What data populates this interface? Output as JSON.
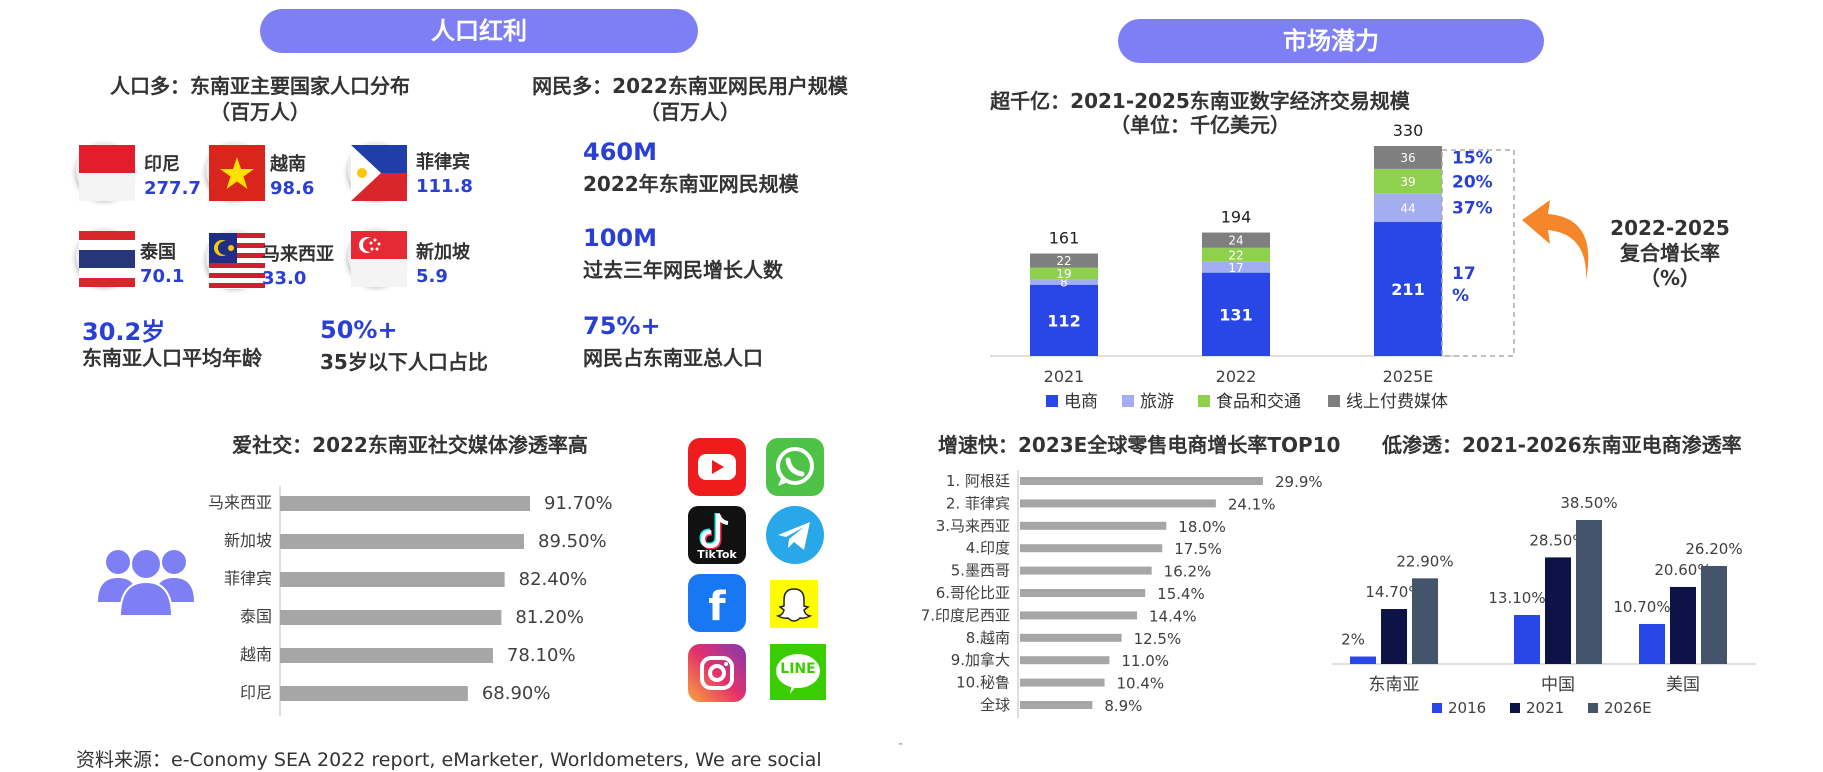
{
  "left": {
    "pill_title": "人口红利",
    "population_heading": "人口多：东南亚主要国家人口分布\n（百万人）",
    "countries": [
      {
        "name": "印尼",
        "value": "277.7",
        "flag": "indonesia-flag"
      },
      {
        "name": "越南",
        "value": "98.6",
        "flag": "vietnam-flag"
      },
      {
        "name": "菲律宾",
        "value": "111.8",
        "flag": "philippines-flag"
      },
      {
        "name": "泰国",
        "value": "70.1",
        "flag": "thailand-flag"
      },
      {
        "name": "马来西亚",
        "value": "33.0",
        "flag": "malaysia-flag"
      },
      {
        "name": "新加坡",
        "value": "5.9",
        "flag": "singapore-flag"
      }
    ],
    "stats": [
      {
        "num": "30.2岁",
        "desc": "东南亚人口平均年龄"
      },
      {
        "num": "50%+",
        "desc": "35岁以下人口占比"
      }
    ],
    "netizen_heading": "网民多：2022东南亚网民用户规模\n（百万人）",
    "netizen_stats": [
      {
        "num": "460M",
        "desc": "2022年东南亚网民规模"
      },
      {
        "num": "100M",
        "desc": "过去三年网民增长人数"
      },
      {
        "num": "75%+",
        "desc": "网民占东南亚总人口"
      }
    ],
    "social_heading": "爱社交：2022东南亚社交媒体渗透率高",
    "apps": [
      "youtube-icon",
      "whatsapp-icon",
      "tiktok-icon",
      "telegram-icon",
      "facebook-icon",
      "snapchat-icon",
      "instagram-icon",
      "line-icon"
    ],
    "tiktok_label": "TikTok",
    "line_label": "LINE"
  },
  "right": {
    "pill_title": "市场潜力",
    "cagr_label": "2022-2025\n复合增长率\n（%）"
  },
  "source_text": "资料来源：e-Conomy SEA 2022 report, eMarketer, Worldometers, We are social",
  "stray_mark": "-",
  "colors": {
    "pill": "#7f7ff5",
    "accent_blue": "#2a3fd6",
    "ecommerce": "#2946e6",
    "travel": "#a3aef2",
    "food": "#8fd14f",
    "media": "#7f7f7f",
    "gray_bar": "#a6a6a6",
    "navy": "#0d1247",
    "slate": "#44546a",
    "orange": "#f5872a"
  },
  "chart_data": [
    {
      "id": "social",
      "type": "bar",
      "orientation": "horizontal",
      "title": "爱社交：2022东南亚社交媒体渗透率高",
      "categories": [
        "马来西亚",
        "新加坡",
        "菲律宾",
        "泰国",
        "越南",
        "印尼"
      ],
      "values": [
        91.7,
        89.5,
        82.4,
        81.2,
        78.1,
        68.9
      ],
      "labels": [
        "91.70%",
        "89.50%",
        "82.40%",
        "81.20%",
        "78.10%",
        "68.90%"
      ],
      "xlim": [
        0,
        100
      ]
    },
    {
      "id": "digital",
      "type": "bar",
      "stacked": true,
      "title": "超千亿：2021-2025东南亚数字经济交易规模\n（单位：千亿美元）",
      "categories": [
        "2021",
        "2022",
        "2025E"
      ],
      "series": [
        {
          "name": "电商",
          "values": [
            112,
            131,
            211
          ],
          "color": "#2946e6",
          "labels": [
            "112",
            "131",
            "211"
          ],
          "cagr": "17\n%"
        },
        {
          "name": "旅游",
          "values": [
            8,
            17,
            44
          ],
          "color": "#a3aef2",
          "labels": [
            "8",
            "17",
            "44"
          ],
          "cagr": "37%"
        },
        {
          "name": "食品和交通",
          "values": [
            19,
            22,
            39
          ],
          "color": "#8fd14f",
          "labels": [
            "19",
            "22",
            "39"
          ],
          "cagr": "20%"
        },
        {
          "name": "线上付费媒体",
          "values": [
            22,
            24,
            36
          ],
          "color": "#7f7f7f",
          "labels": [
            "22",
            "24",
            "36"
          ],
          "cagr": "15%"
        }
      ],
      "totals": [
        "161",
        "194",
        "330"
      ],
      "ylim": [
        0,
        330
      ]
    },
    {
      "id": "growth",
      "type": "bar",
      "orientation": "horizontal",
      "title": "增速快：2023E全球零售电商增长率TOP10",
      "categories": [
        "1. 阿根廷",
        "2. 菲律宾",
        "3.马来西亚",
        "4.印度",
        "5.墨西哥",
        "6.哥伦比亚",
        "7.印度尼西亚",
        "8.越南",
        "9.加拿大",
        "10.秘鲁",
        "全球"
      ],
      "values": [
        29.9,
        24.1,
        18.0,
        17.5,
        16.2,
        15.4,
        14.4,
        12.5,
        11.0,
        10.4,
        8.9
      ],
      "labels": [
        "29.9%",
        "24.1%",
        "18.0%",
        "17.5%",
        "16.2%",
        "15.4%",
        "14.4%",
        "12.5%",
        "11.0%",
        "10.4%",
        "8.9%"
      ],
      "xlim": [
        0,
        30
      ]
    },
    {
      "id": "penetration",
      "type": "bar",
      "title": "低渗透：2021-2026东南亚电商渗透率",
      "categories": [
        "东南亚",
        "中国",
        "美国"
      ],
      "series": [
        {
          "name": "2016",
          "values": [
            2,
            13.1,
            10.7
          ],
          "labels": [
            "2%",
            "13.10%",
            "10.70%"
          ],
          "color": "#2946e6"
        },
        {
          "name": "2021",
          "values": [
            14.7,
            28.5,
            20.6
          ],
          "labels": [
            "14.70%",
            "28.50%",
            "20.60%"
          ],
          "color": "#0d1247"
        },
        {
          "name": "2026E",
          "values": [
            22.9,
            38.5,
            26.2
          ],
          "labels": [
            "22.90%",
            "38.50%",
            "26.20%"
          ],
          "color": "#44546a"
        }
      ],
      "ylim": [
        0,
        40
      ]
    }
  ]
}
